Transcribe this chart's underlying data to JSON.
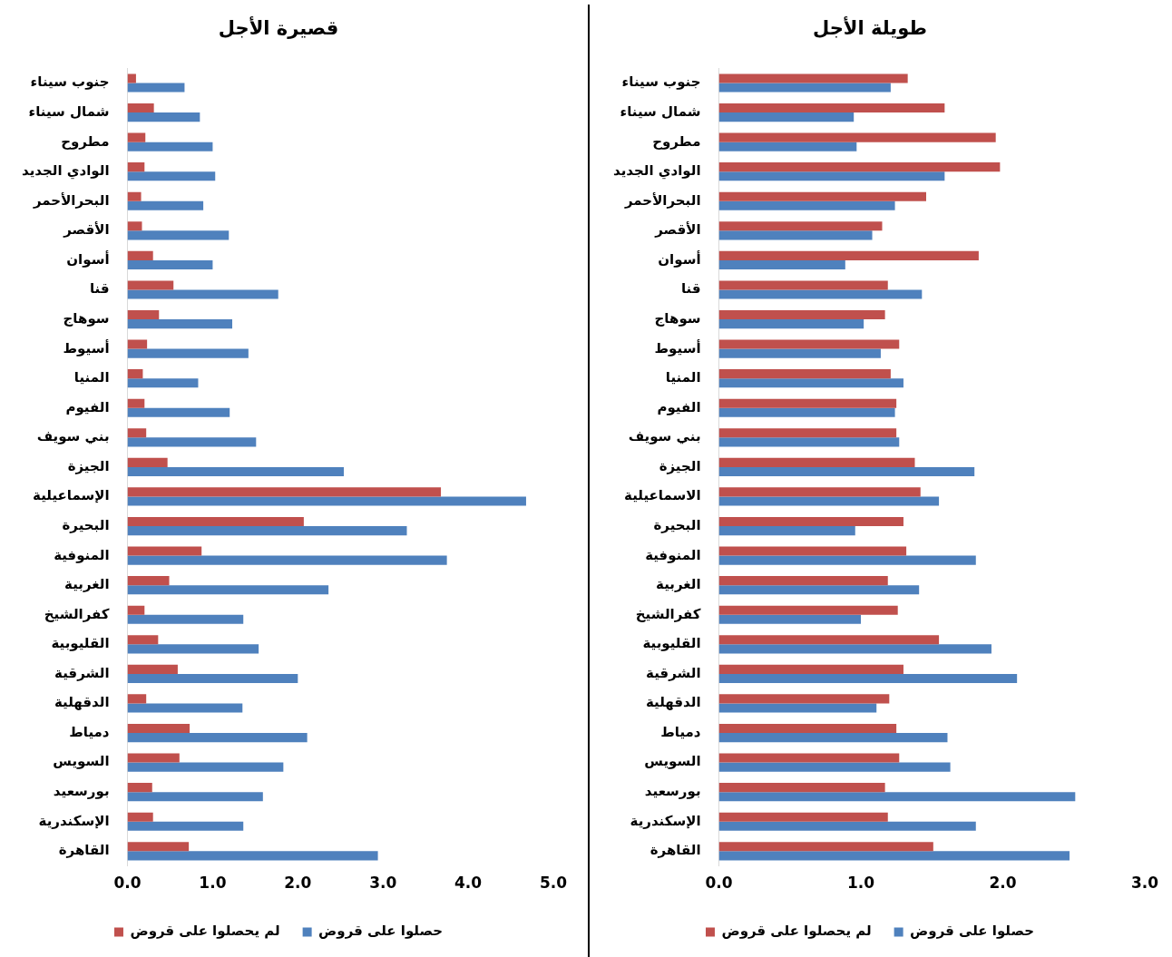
{
  "chart_data": [
    {
      "type": "bar",
      "orientation": "horizontal",
      "title": "قصيرة الأجل",
      "legend": "bottom",
      "grid": false,
      "categories": [
        "جنوب سيناء",
        "شمال سيناء",
        "مطروح",
        "الوادي الجديد",
        "البحرالأحمر",
        "الأقصر",
        "أسوان",
        "قنا",
        "سوهاج",
        "أسيوط",
        "المنيا",
        "الفيوم",
        "بني سويف",
        "الجيزة",
        "الإسماعيلية",
        "البحيرة",
        "المنوفية",
        "الغربية",
        "كفرالشيخ",
        "القليوبية",
        "الشرقية",
        "الدقهلية",
        "دمياط",
        "السويس",
        "بورسعيد",
        "الإسكندرية",
        "القاهرة"
      ],
      "series": [
        {
          "name": "لم يحصلوا على قروض",
          "color": "#c0504d",
          "values": [
            0.1,
            0.31,
            0.21,
            0.2,
            0.16,
            0.17,
            0.3,
            0.54,
            0.37,
            0.23,
            0.18,
            0.2,
            0.22,
            0.47,
            3.68,
            2.07,
            0.87,
            0.49,
            0.2,
            0.36,
            0.59,
            0.22,
            0.73,
            0.61,
            0.29,
            0.3,
            0.72
          ]
        },
        {
          "name": "حصلوا على قروض",
          "color": "#4f81bd",
          "values": [
            0.67,
            0.85,
            1.0,
            1.03,
            0.89,
            1.19,
            1.0,
            1.77,
            1.23,
            1.42,
            0.83,
            1.2,
            1.51,
            2.54,
            4.68,
            3.28,
            3.75,
            2.36,
            1.36,
            1.54,
            2.0,
            1.35,
            2.11,
            1.83,
            1.59,
            1.36,
            2.94
          ]
        }
      ],
      "xlim": [
        0,
        5
      ],
      "xticks": [
        {
          "value": 0,
          "label": "0.0"
        },
        {
          "value": 1,
          "label": "1.0"
        },
        {
          "value": 2,
          "label": "2.0"
        },
        {
          "value": 3,
          "label": "3.0"
        },
        {
          "value": 4,
          "label": "4.0"
        },
        {
          "value": 5,
          "label": "5.0"
        }
      ]
    },
    {
      "type": "bar",
      "orientation": "horizontal",
      "title": "طويلة الأجل",
      "legend": "bottom",
      "grid": false,
      "categories": [
        "جنوب سيناء",
        "شمال سيناء",
        "مطروح",
        "الوادي الجديد",
        "البحرالأحمر",
        "الأقصر",
        "أسوان",
        "قنا",
        "سوهاج",
        "أسيوط",
        "المنيا",
        "الفيوم",
        "بني سويف",
        "الجيزة",
        "الاسماعيلية",
        "البحيرة",
        "المنوفية",
        "الغربية",
        "كفرالشيخ",
        "القليوبية",
        "الشرقية",
        "الدقهلية",
        "دمياط",
        "السويس",
        "بورسعيد",
        "الإسكندرية",
        "القاهرة"
      ],
      "series": [
        {
          "name": "لم يحصلوا على قروض",
          "color": "#c0504d",
          "values": [
            1.33,
            1.59,
            1.95,
            1.98,
            1.46,
            1.15,
            1.83,
            1.19,
            1.17,
            1.27,
            1.21,
            1.25,
            1.25,
            1.38,
            1.42,
            1.3,
            1.32,
            1.19,
            1.26,
            1.55,
            1.3,
            1.2,
            1.25,
            1.27,
            1.17,
            1.19,
            1.51
          ]
        },
        {
          "name": "حصلوا على قروض",
          "color": "#4f81bd",
          "values": [
            1.21,
            0.95,
            0.97,
            1.59,
            1.24,
            1.08,
            0.89,
            1.43,
            1.02,
            1.14,
            1.3,
            1.24,
            1.27,
            1.8,
            1.55,
            0.96,
            1.81,
            1.41,
            1.0,
            1.92,
            2.1,
            1.11,
            1.61,
            1.63,
            2.51,
            1.81,
            2.47
          ]
        }
      ],
      "xlim": [
        0,
        3
      ],
      "xticks": [
        {
          "value": 0,
          "label": "0.0"
        },
        {
          "value": 1,
          "label": "1.0"
        },
        {
          "value": 2,
          "label": "2.0"
        },
        {
          "value": 3,
          "label": "3.0"
        }
      ]
    }
  ]
}
